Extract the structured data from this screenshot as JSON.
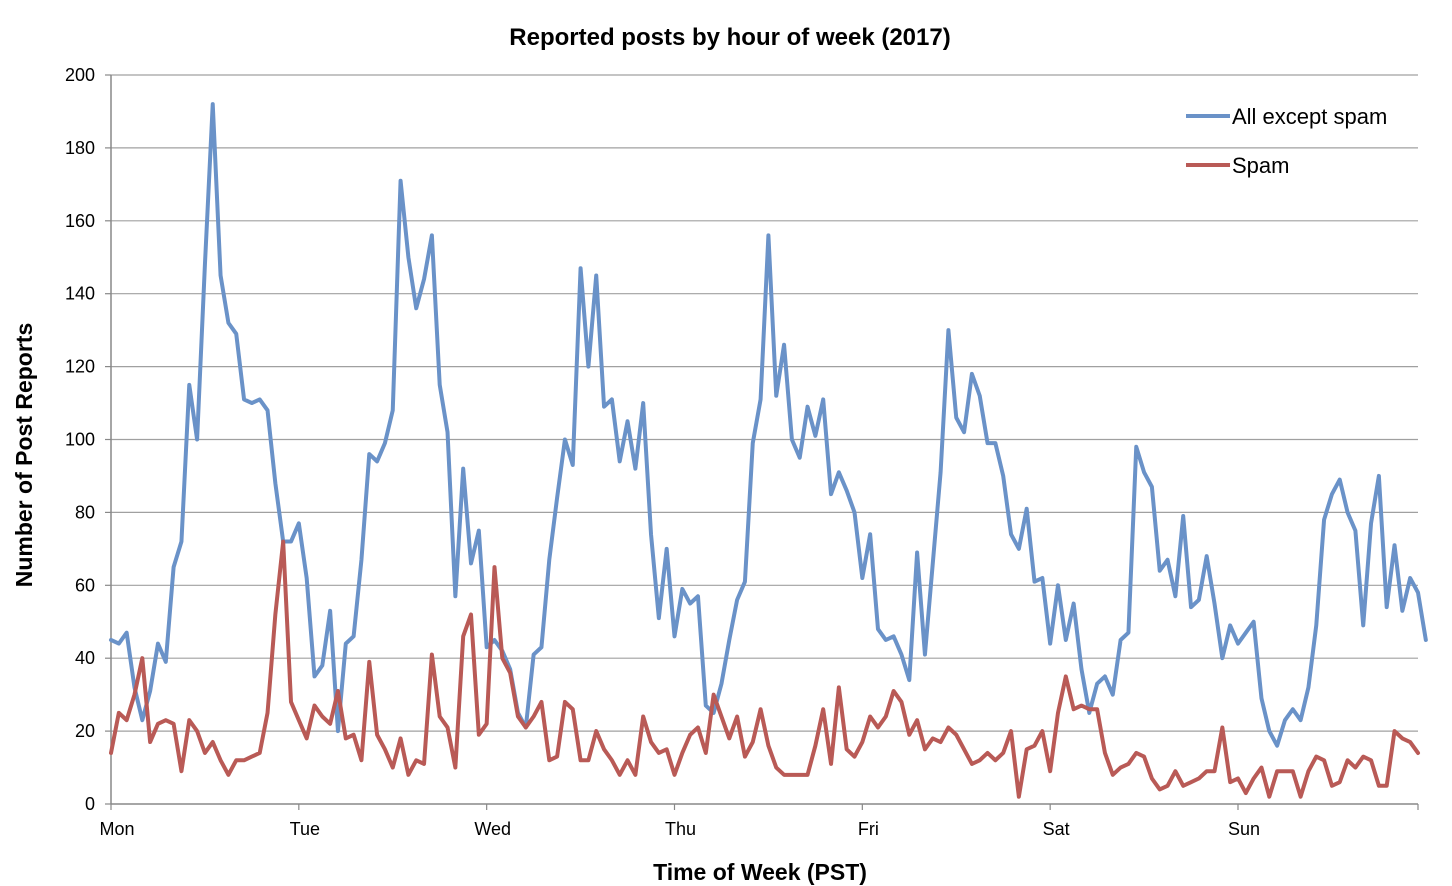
{
  "chart_data": {
    "type": "line",
    "title": "Reported posts by hour of week (2017)",
    "xlabel": "Time of Week (PST)",
    "ylabel": "Number of Post Reports",
    "ylim": [
      0,
      200
    ],
    "yticks": [
      0,
      20,
      40,
      60,
      80,
      100,
      120,
      140,
      160,
      180,
      200
    ],
    "xlim": [
      0,
      167
    ],
    "xticks": [
      {
        "label": "Mon",
        "x": 0
      },
      {
        "label": "Tue",
        "x": 24
      },
      {
        "label": "Wed",
        "x": 48
      },
      {
        "label": "Thu",
        "x": 72
      },
      {
        "label": "Fri",
        "x": 96
      },
      {
        "label": "Sat",
        "x": 120
      },
      {
        "label": "Sun",
        "x": 144
      }
    ],
    "grid": true,
    "legend_position": "top-right",
    "colors": {
      "all_except_spam": "#6a92c8",
      "spam": "#b95a56"
    },
    "series": [
      {
        "name": "All except spam",
        "values": [
          45,
          44,
          47,
          32,
          23,
          31,
          44,
          39,
          65,
          72,
          115,
          100,
          148,
          192,
          145,
          132,
          129,
          111,
          110,
          111,
          108,
          88,
          72,
          72,
          77,
          62,
          35,
          38,
          53,
          20,
          44,
          46,
          67,
          96,
          94,
          99,
          108,
          171,
          150,
          136,
          144,
          156,
          115,
          102,
          57,
          92,
          66,
          75,
          43,
          45,
          42,
          37,
          25,
          21,
          41,
          43,
          67,
          84,
          100,
          93,
          147,
          120,
          145,
          109,
          111,
          94,
          105,
          92,
          110,
          74,
          51,
          70,
          46,
          59,
          55,
          57,
          27,
          25,
          33,
          45,
          56,
          61,
          99,
          111,
          156,
          112,
          126,
          100,
          95,
          109,
          101,
          111,
          85,
          91,
          86,
          80,
          62,
          74,
          48,
          45,
          46,
          41,
          34,
          69,
          41,
          66,
          91,
          130,
          106,
          102,
          118,
          112,
          99,
          99,
          90,
          74,
          70,
          81,
          61,
          62,
          44,
          60,
          45,
          55,
          37,
          25,
          33,
          35,
          30,
          45,
          47,
          98,
          91,
          87,
          64,
          67,
          57,
          79,
          54,
          56,
          68,
          55,
          40,
          49,
          44,
          47,
          50,
          29,
          20,
          16,
          23,
          26,
          23,
          32,
          49,
          78,
          85,
          89,
          80,
          75,
          49,
          77,
          90,
          54,
          71,
          53,
          62,
          58,
          45
        ]
      },
      {
        "name": "Spam",
        "values": [
          14,
          25,
          23,
          30,
          40,
          17,
          22,
          23,
          22,
          9,
          23,
          20,
          14,
          17,
          12,
          8,
          12,
          12,
          13,
          14,
          25,
          52,
          72,
          28,
          23,
          18,
          27,
          24,
          22,
          31,
          18,
          19,
          12,
          39,
          19,
          15,
          10,
          18,
          8,
          12,
          11,
          41,
          24,
          21,
          10,
          46,
          52,
          19,
          22,
          65,
          40,
          36,
          24,
          21,
          24,
          28,
          12,
          13,
          28,
          26,
          12,
          12,
          20,
          15,
          12,
          8,
          12,
          8,
          24,
          17,
          14,
          15,
          8,
          14,
          19,
          21,
          14,
          30,
          24,
          18,
          24,
          13,
          17,
          26,
          16,
          10,
          8,
          8,
          8,
          8,
          16,
          26,
          11,
          32,
          15,
          13,
          17,
          24,
          21,
          24,
          31,
          28,
          19,
          23,
          15,
          18,
          17,
          21,
          19,
          15,
          11,
          12,
          14,
          12,
          14,
          20,
          2,
          15,
          16,
          20,
          9,
          25,
          35,
          26,
          27,
          26,
          26,
          14,
          8,
          10,
          11,
          14,
          13,
          7,
          4,
          5,
          9,
          5,
          6,
          7,
          9,
          9,
          21,
          6,
          7,
          3,
          7,
          10,
          2,
          9,
          9,
          9,
          2,
          9,
          13,
          12,
          5,
          6,
          12,
          10,
          13,
          12,
          5,
          5,
          20,
          18,
          17,
          14
        ]
      }
    ]
  }
}
